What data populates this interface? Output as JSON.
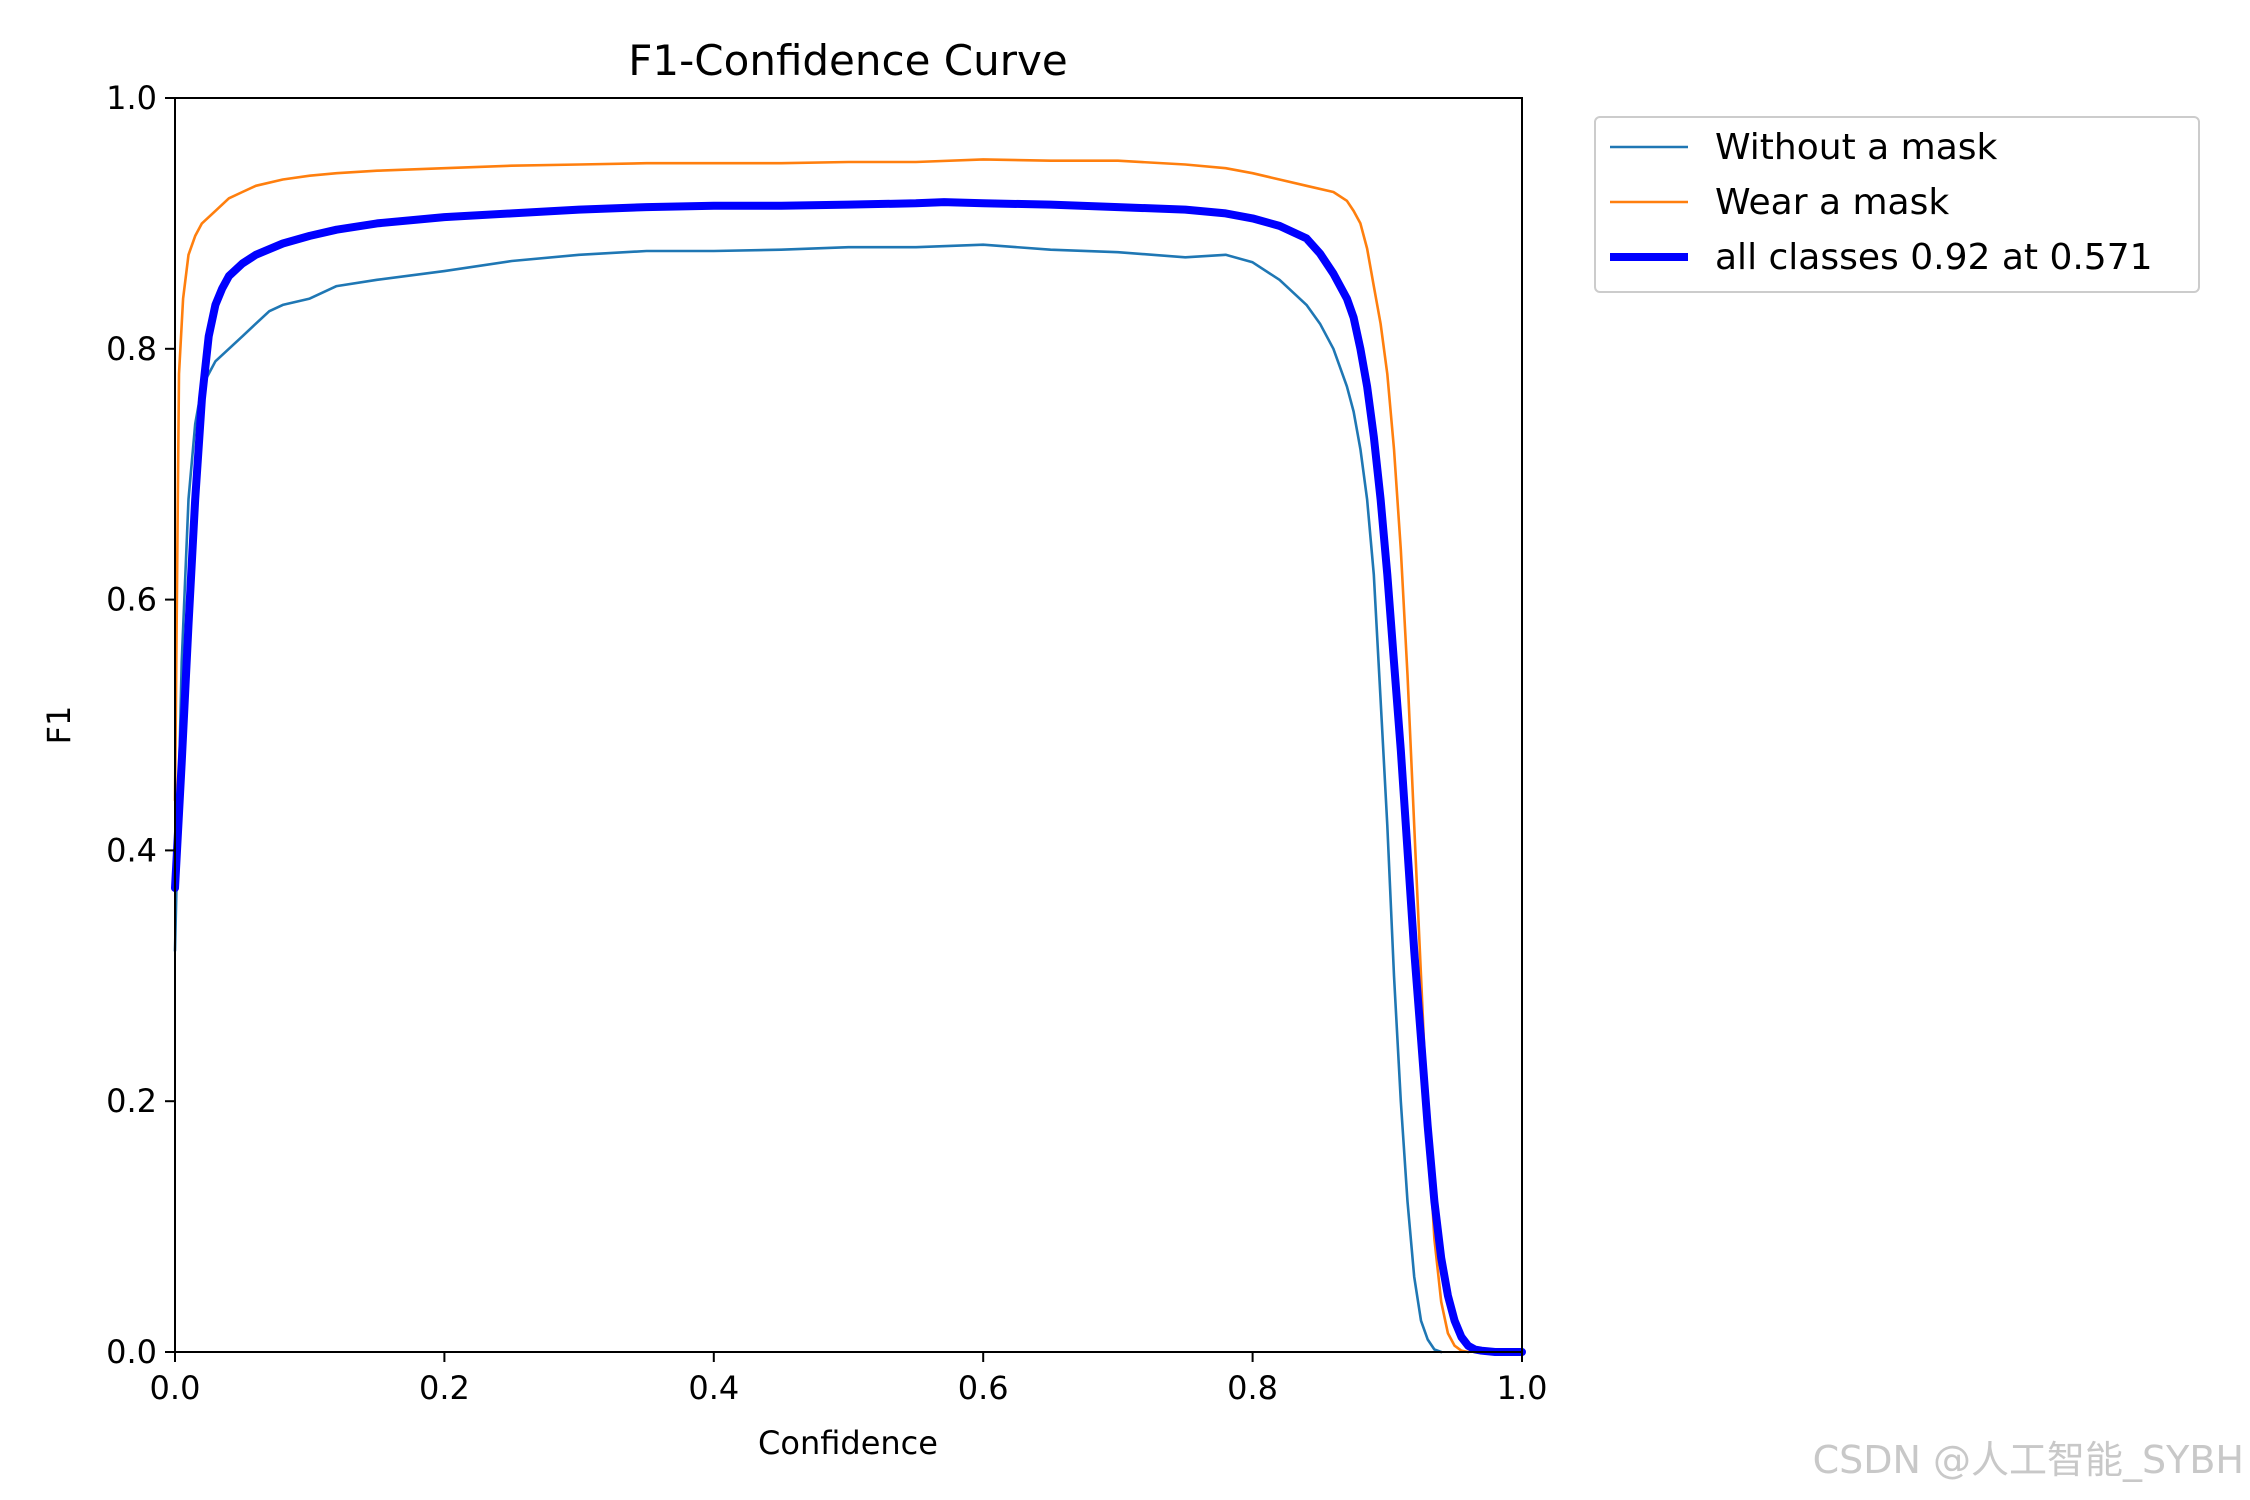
{
  "chart_data": {
    "type": "line",
    "title": "F1-Confidence Curve",
    "xlabel": "Confidence",
    "ylabel": "F1",
    "xlim": [
      0.0,
      1.0
    ],
    "ylim": [
      0.0,
      1.0
    ],
    "xticks": [
      "0.0",
      "0.2",
      "0.4",
      "0.6",
      "0.8",
      "1.0"
    ],
    "yticks": [
      "0.0",
      "0.2",
      "0.4",
      "0.6",
      "0.8",
      "1.0"
    ],
    "grid": false,
    "legend_position": "outside-top-right",
    "series": [
      {
        "name": "Without a mask",
        "color": "#1f77b4",
        "x": [
          0.0,
          0.005,
          0.01,
          0.015,
          0.02,
          0.025,
          0.03,
          0.04,
          0.05,
          0.06,
          0.07,
          0.08,
          0.1,
          0.12,
          0.15,
          0.2,
          0.25,
          0.3,
          0.35,
          0.4,
          0.45,
          0.5,
          0.55,
          0.6,
          0.65,
          0.7,
          0.75,
          0.78,
          0.8,
          0.82,
          0.84,
          0.85,
          0.86,
          0.87,
          0.875,
          0.88,
          0.885,
          0.89,
          0.895,
          0.9,
          0.905,
          0.91,
          0.915,
          0.92,
          0.925,
          0.93,
          0.935,
          0.94
        ],
        "y": [
          0.32,
          0.55,
          0.68,
          0.74,
          0.77,
          0.78,
          0.79,
          0.8,
          0.81,
          0.82,
          0.83,
          0.835,
          0.84,
          0.85,
          0.855,
          0.862,
          0.87,
          0.875,
          0.878,
          0.878,
          0.879,
          0.881,
          0.881,
          0.883,
          0.879,
          0.877,
          0.873,
          0.875,
          0.869,
          0.855,
          0.835,
          0.82,
          0.8,
          0.77,
          0.75,
          0.72,
          0.68,
          0.62,
          0.52,
          0.42,
          0.3,
          0.2,
          0.12,
          0.06,
          0.025,
          0.01,
          0.002,
          0.0
        ]
      },
      {
        "name": "Wear a mask",
        "color": "#ff7f0e",
        "x": [
          0.0,
          0.003,
          0.006,
          0.01,
          0.015,
          0.02,
          0.03,
          0.04,
          0.05,
          0.06,
          0.08,
          0.1,
          0.12,
          0.15,
          0.2,
          0.25,
          0.3,
          0.35,
          0.4,
          0.45,
          0.5,
          0.55,
          0.6,
          0.65,
          0.7,
          0.75,
          0.78,
          0.8,
          0.82,
          0.84,
          0.86,
          0.87,
          0.875,
          0.88,
          0.885,
          0.89,
          0.895,
          0.9,
          0.905,
          0.91,
          0.915,
          0.92,
          0.925,
          0.93,
          0.935,
          0.94,
          0.945,
          0.95,
          0.955,
          0.96
        ],
        "y": [
          0.44,
          0.78,
          0.84,
          0.875,
          0.89,
          0.9,
          0.91,
          0.92,
          0.925,
          0.93,
          0.935,
          0.938,
          0.94,
          0.942,
          0.944,
          0.946,
          0.947,
          0.948,
          0.948,
          0.948,
          0.949,
          0.949,
          0.951,
          0.95,
          0.95,
          0.947,
          0.944,
          0.94,
          0.935,
          0.93,
          0.925,
          0.918,
          0.91,
          0.9,
          0.88,
          0.85,
          0.82,
          0.78,
          0.72,
          0.64,
          0.54,
          0.42,
          0.3,
          0.18,
          0.09,
          0.04,
          0.015,
          0.005,
          0.001,
          0.0
        ]
      },
      {
        "name": "all classes 0.92 at 0.571",
        "color": "#0000ff",
        "x": [
          0.0,
          0.005,
          0.01,
          0.015,
          0.02,
          0.025,
          0.03,
          0.035,
          0.04,
          0.05,
          0.06,
          0.08,
          0.1,
          0.12,
          0.15,
          0.2,
          0.25,
          0.3,
          0.35,
          0.4,
          0.45,
          0.5,
          0.55,
          0.571,
          0.6,
          0.65,
          0.7,
          0.75,
          0.78,
          0.8,
          0.82,
          0.84,
          0.85,
          0.86,
          0.87,
          0.875,
          0.88,
          0.885,
          0.89,
          0.895,
          0.9,
          0.905,
          0.91,
          0.915,
          0.92,
          0.925,
          0.93,
          0.935,
          0.94,
          0.945,
          0.95,
          0.955,
          0.96,
          0.965,
          0.97,
          0.98,
          1.0
        ],
        "y": [
          0.37,
          0.47,
          0.58,
          0.68,
          0.76,
          0.81,
          0.835,
          0.848,
          0.858,
          0.868,
          0.875,
          0.884,
          0.89,
          0.895,
          0.9,
          0.905,
          0.908,
          0.911,
          0.913,
          0.914,
          0.914,
          0.915,
          0.916,
          0.917,
          0.916,
          0.915,
          0.913,
          0.911,
          0.908,
          0.904,
          0.898,
          0.888,
          0.876,
          0.86,
          0.84,
          0.825,
          0.8,
          0.77,
          0.73,
          0.68,
          0.62,
          0.55,
          0.48,
          0.4,
          0.32,
          0.25,
          0.18,
          0.12,
          0.075,
          0.045,
          0.025,
          0.012,
          0.005,
          0.002,
          0.001,
          0.0,
          0.0
        ]
      }
    ]
  },
  "watermark": "CSDN @人工智能_SYBH"
}
